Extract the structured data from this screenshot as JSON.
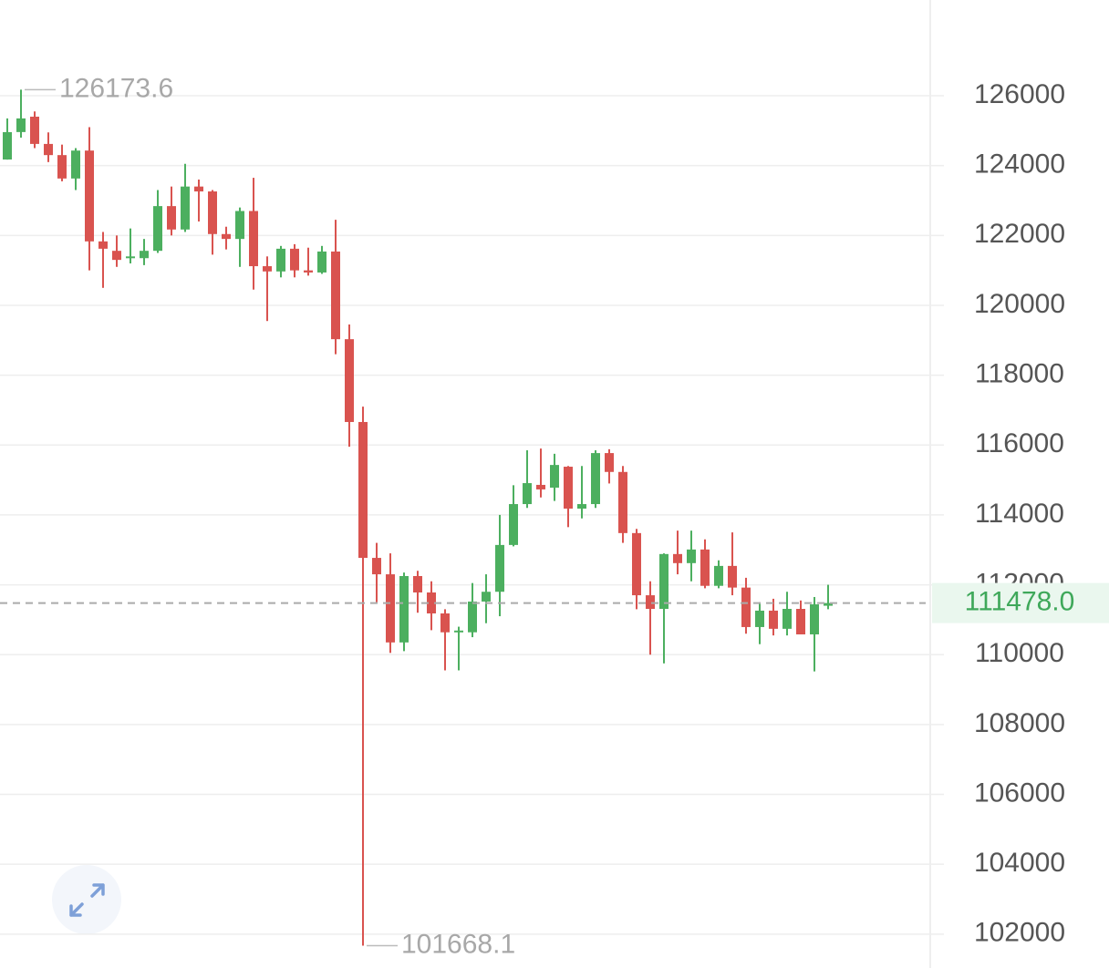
{
  "chart_data": {
    "type": "candlestick",
    "open": [
      124174,
      124960,
      125400,
      124620,
      124300,
      123630,
      124430,
      121830,
      121560,
      121350,
      121350,
      121560,
      122840,
      122170,
      123400,
      123260,
      122040,
      121900,
      122700,
      121120,
      120970,
      121620,
      121000,
      120940,
      121540,
      119030,
      116660,
      112770,
      112300,
      110350,
      112250,
      111780,
      111180,
      110640,
      110640,
      111520,
      111800,
      113140,
      114310,
      114860,
      114780,
      115380,
      114180,
      114310,
      115770,
      115230,
      113480,
      111700,
      111310,
      112880,
      112620,
      113010,
      111970,
      112540,
      111920,
      110790,
      111260,
      110740,
      111310,
      110580,
      111400
    ],
    "high": [
      125350,
      126173.6,
      125550,
      124950,
      124600,
      124500,
      125100,
      122100,
      122000,
      122200,
      121900,
      123300,
      123400,
      124050,
      123600,
      123300,
      122250,
      122800,
      123650,
      121400,
      121700,
      121750,
      121650,
      121700,
      122450,
      119450,
      117100,
      113200,
      112900,
      112350,
      112400,
      112100,
      111300,
      110800,
      112050,
      112300,
      114000,
      114850,
      115850,
      115900,
      115750,
      115400,
      115400,
      115850,
      115880,
      115400,
      113600,
      112100,
      112900,
      113550,
      113550,
      113300,
      112700,
      113500,
      112200,
      111500,
      111600,
      111800,
      111550,
      111650,
      112000
    ],
    "low": [
      124170,
      124800,
      124500,
      124100,
      123550,
      123300,
      121000,
      120500,
      121100,
      121200,
      121150,
      121500,
      122000,
      122100,
      122400,
      121450,
      121600,
      121100,
      120450,
      119550,
      120800,
      120800,
      120850,
      120900,
      118600,
      115950,
      101668.1,
      111500,
      110050,
      110100,
      111200,
      110700,
      109550,
      109550,
      110500,
      110900,
      111100,
      113100,
      114200,
      114500,
      114400,
      113650,
      113900,
      114200,
      114900,
      113200,
      111300,
      110000,
      109750,
      112300,
      112100,
      111900,
      111900,
      111700,
      110600,
      110300,
      110550,
      110550,
      110580,
      109520,
      111300
    ],
    "close": [
      124957,
      125350,
      124620,
      124300,
      123630,
      124430,
      121830,
      121620,
      121300,
      121400,
      121560,
      122840,
      122170,
      123400,
      123260,
      122040,
      121900,
      122700,
      121120,
      120970,
      121620,
      121000,
      120940,
      121540,
      119030,
      116660,
      112770,
      112300,
      110350,
      112250,
      111780,
      111180,
      110640,
      110690,
      111520,
      111800,
      113140,
      114310,
      114910,
      114730,
      115430,
      114180,
      114310,
      115770,
      115230,
      113480,
      111700,
      111310,
      112880,
      112620,
      113010,
      111970,
      112540,
      111920,
      110790,
      111260,
      110740,
      111310,
      110580,
      111440,
      111478
    ],
    "up_color": "#4caf5f",
    "down_color": "#d9534f",
    "ylim": [
      101030,
      128740
    ],
    "yticks": [
      102000,
      104000,
      106000,
      108000,
      110000,
      112000,
      114000,
      116000,
      118000,
      120000,
      122000,
      124000,
      126000
    ],
    "grid": true,
    "high_label": 126173.6,
    "low_label": 101668.1,
    "last_price": {
      "value": 111478,
      "label": "111478.0"
    }
  }
}
